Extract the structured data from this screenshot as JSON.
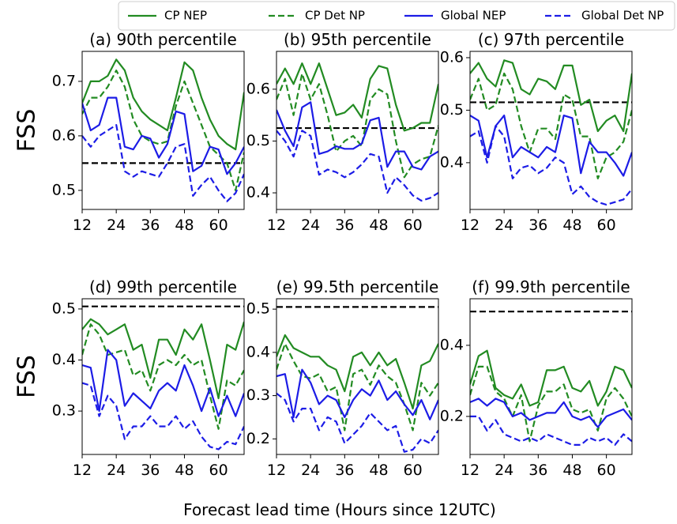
{
  "figure": {
    "xlabel": "Forecast lead time (Hours since 12UTC)",
    "ylabel": "FSS",
    "legend": "top"
  },
  "chart_data": [
    {
      "type": "line",
      "title": "(a) 90th percentile",
      "x": [
        12,
        15,
        18,
        21,
        24,
        27,
        30,
        33,
        36,
        39,
        42,
        45,
        48,
        51,
        54,
        57,
        60,
        63,
        66,
        69
      ],
      "xlim": [
        12,
        69
      ],
      "xticks": [
        12,
        24,
        36,
        48,
        60
      ],
      "ylim": [
        0.465,
        0.755
      ],
      "yticks": [
        0.5,
        0.6,
        0.7
      ],
      "hline": 0.55,
      "hline_color": "#000000",
      "series": [
        {
          "name": "CP NEP",
          "color": "#228b22",
          "dash": false,
          "values": [
            0.66,
            0.7,
            0.7,
            0.71,
            0.74,
            0.72,
            0.67,
            0.645,
            0.63,
            0.62,
            0.61,
            0.67,
            0.735,
            0.72,
            0.67,
            0.63,
            0.6,
            0.585,
            0.575,
            0.68
          ]
        },
        {
          "name": "CP Det NP",
          "color": "#228b22",
          "dash": true,
          "values": [
            0.64,
            0.67,
            0.67,
            0.69,
            0.72,
            0.69,
            0.63,
            0.6,
            0.59,
            0.585,
            0.59,
            0.655,
            0.7,
            0.66,
            0.62,
            0.58,
            0.565,
            0.55,
            0.5,
            0.57
          ]
        },
        {
          "name": "Global NEP",
          "color": "#1c1ce6",
          "dash": false,
          "values": [
            0.66,
            0.61,
            0.62,
            0.67,
            0.67,
            0.58,
            0.575,
            0.6,
            0.595,
            0.56,
            0.585,
            0.645,
            0.64,
            0.535,
            0.545,
            0.58,
            0.575,
            0.53,
            0.55,
            0.58
          ]
        },
        {
          "name": "Global Det NP",
          "color": "#1c1ce6",
          "dash": true,
          "values": [
            0.6,
            0.58,
            0.6,
            0.61,
            0.62,
            0.535,
            0.525,
            0.535,
            0.53,
            0.525,
            0.55,
            0.58,
            0.585,
            0.49,
            0.51,
            0.525,
            0.5,
            0.48,
            0.495,
            0.53
          ]
        }
      ]
    },
    {
      "type": "line",
      "title": "(b) 95th percentile",
      "x": [
        12,
        15,
        18,
        21,
        24,
        27,
        30,
        33,
        36,
        39,
        42,
        45,
        48,
        51,
        54,
        57,
        60,
        63,
        66,
        69
      ],
      "xlim": [
        12,
        69
      ],
      "xticks": [
        12,
        24,
        36,
        48,
        60
      ],
      "ylim": [
        0.368,
        0.673
      ],
      "yticks": [
        0.4,
        0.5,
        0.6
      ],
      "hline": 0.525,
      "hline_color": "#000000",
      "series": [
        {
          "color": "#228b22",
          "dash": false,
          "values": [
            0.61,
            0.64,
            0.61,
            0.65,
            0.61,
            0.65,
            0.6,
            0.55,
            0.555,
            0.57,
            0.545,
            0.62,
            0.645,
            0.64,
            0.57,
            0.52,
            0.525,
            0.535,
            0.535,
            0.61
          ]
        },
        {
          "color": "#228b22",
          "dash": true,
          "values": [
            0.58,
            0.62,
            0.55,
            0.63,
            0.58,
            0.61,
            0.55,
            0.48,
            0.5,
            0.51,
            0.49,
            0.58,
            0.6,
            0.59,
            0.5,
            0.43,
            0.455,
            0.465,
            0.47,
            0.53
          ]
        },
        {
          "color": "#1c1ce6",
          "dash": false,
          "values": [
            0.56,
            0.52,
            0.49,
            0.565,
            0.575,
            0.475,
            0.48,
            0.49,
            0.485,
            0.485,
            0.495,
            0.54,
            0.545,
            0.45,
            0.48,
            0.48,
            0.45,
            0.445,
            0.47,
            0.48
          ]
        },
        {
          "color": "#1c1ce6",
          "dash": true,
          "values": [
            0.52,
            0.5,
            0.47,
            0.52,
            0.51,
            0.435,
            0.445,
            0.44,
            0.43,
            0.44,
            0.455,
            0.475,
            0.47,
            0.4,
            0.43,
            0.415,
            0.395,
            0.385,
            0.39,
            0.4
          ]
        }
      ]
    },
    {
      "type": "line",
      "title": "(c) 97th percentile",
      "x": [
        12,
        15,
        18,
        21,
        24,
        27,
        30,
        33,
        36,
        39,
        42,
        45,
        48,
        51,
        54,
        57,
        60,
        63,
        66,
        69
      ],
      "xlim": [
        12,
        69
      ],
      "xticks": [
        12,
        24,
        36,
        48,
        60
      ],
      "ylim": [
        0.311,
        0.612
      ],
      "yticks": [
        0.4,
        0.5,
        0.6
      ],
      "hline": 0.515,
      "hline_color": "#000000",
      "series": [
        {
          "color": "#228b22",
          "dash": false,
          "values": [
            0.57,
            0.59,
            0.56,
            0.545,
            0.595,
            0.59,
            0.54,
            0.53,
            0.56,
            0.555,
            0.54,
            0.585,
            0.585,
            0.51,
            0.52,
            0.46,
            0.48,
            0.49,
            0.46,
            0.57
          ]
        },
        {
          "color": "#228b22",
          "dash": true,
          "values": [
            0.52,
            0.56,
            0.5,
            0.51,
            0.57,
            0.54,
            0.47,
            0.42,
            0.465,
            0.465,
            0.445,
            0.53,
            0.52,
            0.45,
            0.45,
            0.37,
            0.41,
            0.42,
            0.44,
            0.5
          ]
        },
        {
          "color": "#1c1ce6",
          "dash": false,
          "values": [
            0.49,
            0.48,
            0.41,
            0.47,
            0.49,
            0.41,
            0.43,
            0.42,
            0.41,
            0.43,
            0.42,
            0.49,
            0.485,
            0.38,
            0.44,
            0.42,
            0.42,
            0.4,
            0.375,
            0.42
          ]
        },
        {
          "color": "#1c1ce6",
          "dash": true,
          "values": [
            0.45,
            0.46,
            0.4,
            0.47,
            0.45,
            0.37,
            0.39,
            0.395,
            0.38,
            0.39,
            0.41,
            0.4,
            0.34,
            0.355,
            0.335,
            0.325,
            0.32,
            0.325,
            0.33,
            0.35
          ]
        }
      ]
    },
    {
      "type": "line",
      "title": "(d) 99th percentile",
      "x": [
        12,
        15,
        18,
        21,
        24,
        27,
        30,
        33,
        36,
        39,
        42,
        45,
        48,
        51,
        54,
        57,
        60,
        63,
        66,
        69
      ],
      "xlim": [
        12,
        69
      ],
      "xticks": [
        12,
        24,
        36,
        48,
        60
      ],
      "ylim": [
        0.215,
        0.52
      ],
      "yticks": [
        0.3,
        0.4,
        0.5
      ],
      "hline": 0.505,
      "hline_color": "#000000",
      "series": [
        {
          "color": "#228b22",
          "dash": false,
          "values": [
            0.46,
            0.48,
            0.47,
            0.45,
            0.46,
            0.47,
            0.42,
            0.43,
            0.365,
            0.44,
            0.44,
            0.41,
            0.46,
            0.44,
            0.47,
            0.4,
            0.325,
            0.43,
            0.42,
            0.475
          ]
        },
        {
          "color": "#228b22",
          "dash": true,
          "values": [
            0.41,
            0.47,
            0.45,
            0.41,
            0.415,
            0.42,
            0.37,
            0.38,
            0.34,
            0.39,
            0.4,
            0.39,
            0.41,
            0.39,
            0.4,
            0.33,
            0.265,
            0.36,
            0.35,
            0.38
          ]
        },
        {
          "color": "#1c1ce6",
          "dash": false,
          "values": [
            0.39,
            0.385,
            0.3,
            0.42,
            0.4,
            0.31,
            0.335,
            0.32,
            0.305,
            0.34,
            0.355,
            0.34,
            0.39,
            0.35,
            0.3,
            0.345,
            0.29,
            0.33,
            0.29,
            0.335
          ]
        },
        {
          "color": "#1c1ce6",
          "dash": true,
          "values": [
            0.355,
            0.35,
            0.29,
            0.33,
            0.31,
            0.245,
            0.27,
            0.27,
            0.29,
            0.27,
            0.27,
            0.29,
            0.265,
            0.28,
            0.25,
            0.23,
            0.225,
            0.24,
            0.235,
            0.27
          ]
        }
      ]
    },
    {
      "type": "line",
      "title": "(e) 99.5th percentile",
      "x": [
        12,
        15,
        18,
        21,
        24,
        27,
        30,
        33,
        36,
        39,
        42,
        45,
        48,
        51,
        54,
        57,
        60,
        63,
        66,
        69
      ],
      "xlim": [
        12,
        69
      ],
      "xticks": [
        12,
        24,
        36,
        48,
        60
      ],
      "ylim": [
        0.164,
        0.524
      ],
      "yticks": [
        0.2,
        0.3,
        0.4,
        0.5
      ],
      "hline": 0.505,
      "hline_color": "#000000",
      "series": [
        {
          "color": "#228b22",
          "dash": false,
          "values": [
            0.39,
            0.44,
            0.41,
            0.4,
            0.39,
            0.39,
            0.37,
            0.36,
            0.31,
            0.39,
            0.4,
            0.37,
            0.4,
            0.37,
            0.385,
            0.33,
            0.27,
            0.37,
            0.38,
            0.42
          ]
        },
        {
          "color": "#228b22",
          "dash": true,
          "values": [
            0.36,
            0.42,
            0.38,
            0.345,
            0.34,
            0.35,
            0.31,
            0.32,
            0.22,
            0.35,
            0.36,
            0.325,
            0.37,
            0.345,
            0.33,
            0.28,
            0.22,
            0.33,
            0.3,
            0.33
          ]
        },
        {
          "color": "#1c1ce6",
          "dash": false,
          "values": [
            0.345,
            0.35,
            0.25,
            0.36,
            0.33,
            0.28,
            0.3,
            0.29,
            0.25,
            0.29,
            0.315,
            0.3,
            0.335,
            0.29,
            0.31,
            0.28,
            0.255,
            0.29,
            0.245,
            0.29
          ]
        },
        {
          "color": "#1c1ce6",
          "dash": true,
          "values": [
            0.305,
            0.29,
            0.24,
            0.27,
            0.27,
            0.22,
            0.25,
            0.24,
            0.19,
            0.21,
            0.23,
            0.26,
            0.24,
            0.22,
            0.23,
            0.17,
            0.175,
            0.2,
            0.19,
            0.22
          ]
        }
      ]
    },
    {
      "type": "line",
      "title": "(f) 99.9th percentile",
      "x": [
        12,
        15,
        18,
        21,
        24,
        27,
        30,
        33,
        36,
        39,
        42,
        45,
        48,
        51,
        54,
        57,
        60,
        63,
        66,
        69
      ],
      "xlim": [
        12,
        69
      ],
      "xticks": [
        12,
        24,
        36,
        48,
        60
      ],
      "ylim": [
        0.093,
        0.531
      ],
      "yticks": [
        0.2,
        0.4
      ],
      "hline": 0.495,
      "hline_color": "#000000",
      "series": [
        {
          "color": "#228b22",
          "dash": false,
          "values": [
            0.29,
            0.37,
            0.385,
            0.28,
            0.26,
            0.25,
            0.29,
            0.23,
            0.24,
            0.33,
            0.33,
            0.34,
            0.28,
            0.27,
            0.3,
            0.23,
            0.27,
            0.34,
            0.33,
            0.28
          ]
        },
        {
          "color": "#228b22",
          "dash": true,
          "values": [
            0.26,
            0.34,
            0.34,
            0.27,
            0.25,
            0.2,
            0.26,
            0.13,
            0.23,
            0.27,
            0.27,
            0.29,
            0.22,
            0.21,
            0.22,
            0.16,
            0.25,
            0.28,
            0.25,
            0.2
          ]
        },
        {
          "color": "#1c1ce6",
          "dash": false,
          "values": [
            0.24,
            0.25,
            0.23,
            0.25,
            0.24,
            0.2,
            0.21,
            0.19,
            0.2,
            0.21,
            0.21,
            0.24,
            0.2,
            0.19,
            0.2,
            0.17,
            0.2,
            0.21,
            0.22,
            0.19
          ]
        },
        {
          "color": "#1c1ce6",
          "dash": true,
          "values": [
            0.2,
            0.2,
            0.16,
            0.19,
            0.15,
            0.14,
            0.13,
            0.14,
            0.13,
            0.15,
            0.14,
            0.13,
            0.12,
            0.12,
            0.14,
            0.13,
            0.14,
            0.12,
            0.15,
            0.13
          ]
        }
      ]
    }
  ]
}
